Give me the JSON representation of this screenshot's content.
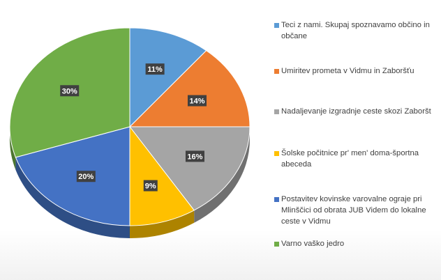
{
  "chart_data": {
    "type": "pie",
    "style": "3d",
    "legend_position": "right",
    "slices": [
      {
        "label": "Teci z nami. Skupaj spoznavamo občino in občane",
        "value": 11,
        "value_label": "11%",
        "color": "#5b9bd5"
      },
      {
        "label": "Umiritev prometa v Vidmu in Zaboršťu",
        "value": 14,
        "value_label": "14%",
        "color": "#ed7d31"
      },
      {
        "label": "Nadaljevanje izgradnje ceste skozi Zaboršt",
        "value": 16,
        "value_label": "16%",
        "color": "#a5a5a5"
      },
      {
        "label": "Šolske počitnice pr' men' doma-športna abeceda",
        "value": 9,
        "value_label": "9%",
        "color": "#ffc000"
      },
      {
        "label": "Postavitev kovinske varovalne ograje pri Mlinščici od obrata JUB Videm do lokalne ceste v Vidmu",
        "value": 20,
        "value_label": "20%",
        "color": "#4472c4"
      },
      {
        "label": "Varno vaško jedro",
        "value": 30,
        "value_label": "30%",
        "color": "#70ad47"
      }
    ]
  }
}
